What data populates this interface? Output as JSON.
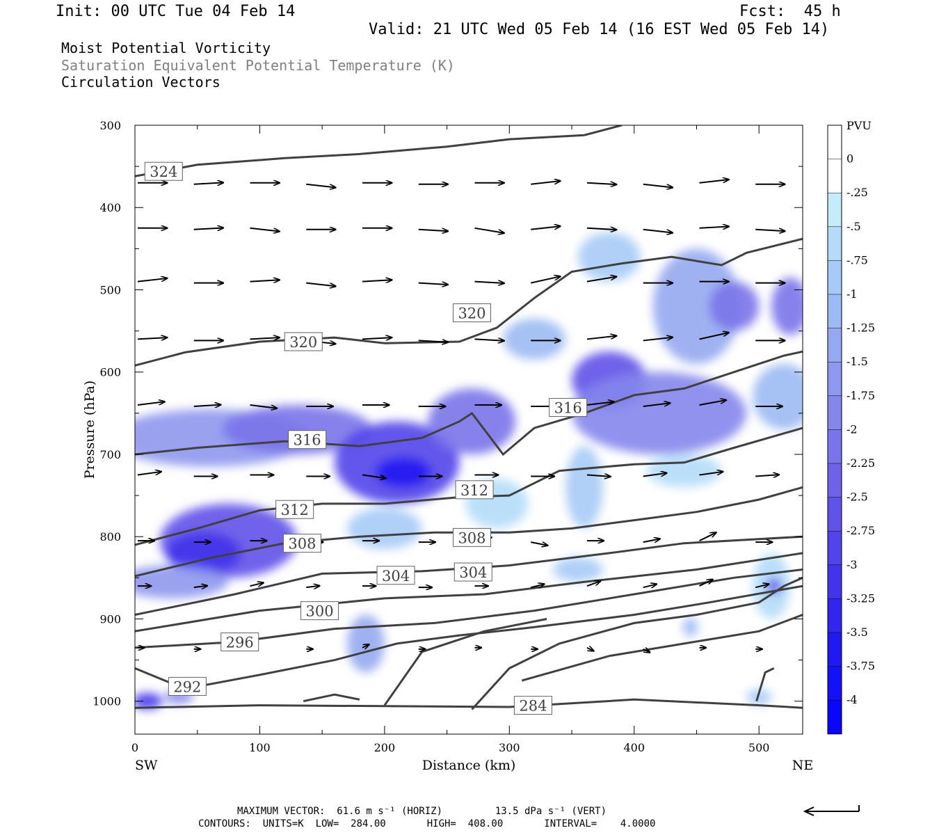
{
  "header": {
    "init": "Init: 00 UTC Tue 04 Feb 14",
    "fcst": "Fcst:  45 h",
    "valid": "Valid: 21 UTC Wed 05 Feb 14 (16 EST Wed 05 Feb 14)",
    "field1": "Moist Potential Vorticity",
    "field2": "Saturation Equivalent Potential Temperature (K)",
    "field3": "Circulation Vectors"
  },
  "footer": {
    "max_vector": "MAXIMUM VECTOR:  61.6 m s⁻¹ (HORIZ)         13.5 dPa s⁻¹ (VERT)",
    "contours": "CONTOURS:  UNITS=K  LOW=  284.00       HIGH=  408.00       INTERVAL=    4.0000"
  },
  "colors": {
    "contour": "#404040",
    "vector": "#000000",
    "colorbar": [
      "#ffffff",
      "#ffffff",
      "#c6ecfb",
      "#b4dcf8",
      "#a7cbf6",
      "#9cbaf3",
      "#95a8f0",
      "#8f98ee",
      "#8586ec",
      "#7a74ea",
      "#6f62e9",
      "#6152e9",
      "#5244ea",
      "#4234eb",
      "#3226ee",
      "#2218f2",
      "#1510f6",
      "#0a05fb"
    ]
  },
  "chart_data": {
    "type": "heatmap",
    "title": "Moist Potential Vorticity",
    "xlabel": "Distance (km)",
    "ylabel": "Pressure (hPa)",
    "x_ticks": [
      "0",
      "100",
      "200",
      "300",
      "400",
      "500"
    ],
    "y_ticks": [
      "300",
      "400",
      "500",
      "600",
      "700",
      "800",
      "900",
      "1000"
    ],
    "xlim": [
      0,
      535
    ],
    "ylim": [
      1040,
      300
    ],
    "x_end_labels": {
      "left": "SW",
      "right": "NE"
    },
    "colorbar": {
      "units": "PVU",
      "labels": [
        "0",
        "-.25",
        "-.5",
        "-.75",
        "-1",
        "-1.25",
        "-1.5",
        "-1.75",
        "-2",
        "-2.25",
        "-2.5",
        "-2.75",
        "-3",
        "-3.25",
        "-3.5",
        "-3.75",
        "-4"
      ],
      "levels": [
        0.25,
        0,
        -0.25,
        -0.5,
        -0.75,
        -1,
        -1.25,
        -1.5,
        -1.75,
        -2,
        -2.25,
        -2.5,
        -2.75,
        -3,
        -3.25,
        -3.5,
        -3.75,
        -4,
        -4.25
      ]
    },
    "mpv_blobs": [
      {
        "x": 60,
        "p": 680,
        "rx": 80,
        "rp": 35,
        "v": -1.5
      },
      {
        "x": 130,
        "p": 670,
        "rx": 60,
        "rp": 30,
        "v": -2.0
      },
      {
        "x": 210,
        "p": 710,
        "rx": 50,
        "rp": 50,
        "v": -2.75
      },
      {
        "x": 215,
        "p": 722,
        "rx": 22,
        "rp": 18,
        "v": -3.5
      },
      {
        "x": 270,
        "p": 660,
        "rx": 35,
        "rp": 40,
        "v": -2.0
      },
      {
        "x": 75,
        "p": 805,
        "rx": 55,
        "rp": 45,
        "v": -2.5
      },
      {
        "x": 55,
        "p": 820,
        "rx": 30,
        "rp": 25,
        "v": -3.0
      },
      {
        "x": 30,
        "p": 855,
        "rx": 45,
        "rp": 20,
        "v": -1.5
      },
      {
        "x": 380,
        "p": 610,
        "rx": 30,
        "rp": 35,
        "v": -2.5
      },
      {
        "x": 420,
        "p": 650,
        "rx": 70,
        "rp": 50,
        "v": -1.75
      },
      {
        "x": 450,
        "p": 520,
        "rx": 35,
        "rp": 70,
        "v": -1.25
      },
      {
        "x": 480,
        "p": 520,
        "rx": 20,
        "rp": 30,
        "v": -2.0
      },
      {
        "x": 525,
        "p": 520,
        "rx": 15,
        "rp": 35,
        "v": -2.0
      },
      {
        "x": 520,
        "p": 630,
        "rx": 25,
        "rp": 40,
        "v": -1.0
      },
      {
        "x": 380,
        "p": 460,
        "rx": 25,
        "rp": 30,
        "v": -0.75
      },
      {
        "x": 320,
        "p": 560,
        "rx": 25,
        "rp": 25,
        "v": -1.0
      },
      {
        "x": 360,
        "p": 740,
        "rx": 15,
        "rp": 50,
        "v": -0.75
      },
      {
        "x": 440,
        "p": 720,
        "rx": 30,
        "rp": 20,
        "v": -0.5
      },
      {
        "x": 200,
        "p": 790,
        "rx": 30,
        "rp": 25,
        "v": -0.75
      },
      {
        "x": 185,
        "p": 930,
        "rx": 15,
        "rp": 35,
        "v": -1.25
      },
      {
        "x": 10,
        "p": 1000,
        "rx": 12,
        "rp": 10,
        "v": -3.0
      },
      {
        "x": 35,
        "p": 995,
        "rx": 12,
        "rp": 8,
        "v": -1.75
      },
      {
        "x": 355,
        "p": 840,
        "rx": 20,
        "rp": 15,
        "v": -0.75
      },
      {
        "x": 510,
        "p": 860,
        "rx": 15,
        "rp": 40,
        "v": -0.5
      },
      {
        "x": 512,
        "p": 860,
        "rx": 6,
        "rp": 10,
        "v": -2.5
      },
      {
        "x": 445,
        "p": 910,
        "rx": 6,
        "rp": 12,
        "v": -1.0
      },
      {
        "x": 500,
        "p": 995,
        "rx": 10,
        "rp": 10,
        "v": -0.75
      },
      {
        "x": 290,
        "p": 760,
        "rx": 25,
        "rp": 30,
        "v": -0.5
      }
    ],
    "theta_e_contours": [
      {
        "label": "324",
        "label_at": [
          23,
          356
        ],
        "points": [
          [
            0,
            362
          ],
          [
            50,
            348
          ],
          [
            120,
            340
          ],
          [
            180,
            335
          ],
          [
            250,
            326
          ],
          [
            300,
            317
          ],
          [
            360,
            312
          ],
          [
            390,
            300
          ]
        ]
      },
      {
        "label": "320",
        "label_at": [
          135,
          563
        ],
        "points": [
          [
            0,
            592
          ],
          [
            40,
            576
          ],
          [
            100,
            563
          ],
          [
            160,
            558
          ],
          [
            200,
            565
          ],
          [
            260,
            563
          ],
          [
            290,
            546
          ],
          [
            320,
            510
          ],
          [
            350,
            478
          ],
          [
            390,
            468
          ],
          [
            430,
            460
          ],
          [
            470,
            470
          ],
          [
            490,
            455
          ],
          [
            535,
            438
          ]
        ]
      },
      {
        "label": "320",
        "label_at": [
          270,
          528
        ],
        "points": []
      },
      {
        "label": "316",
        "label_at": [
          138,
          682
        ],
        "points": [
          [
            0,
            700
          ],
          [
            50,
            692
          ],
          [
            120,
            684
          ],
          [
            180,
            690
          ],
          [
            230,
            680
          ],
          [
            260,
            660
          ],
          [
            270,
            650
          ],
          [
            285,
            680
          ],
          [
            295,
            700
          ],
          [
            320,
            668
          ],
          [
            360,
            650
          ],
          [
            400,
            628
          ],
          [
            440,
            620
          ],
          [
            480,
            600
          ],
          [
            520,
            580
          ],
          [
            535,
            575
          ]
        ]
      },
      {
        "label": "316",
        "label_at": [
          347,
          643
        ],
        "points": []
      },
      {
        "label": "312",
        "label_at": [
          128,
          767
        ],
        "points": [
          [
            0,
            810
          ],
          [
            50,
            790
          ],
          [
            100,
            768
          ],
          [
            150,
            760
          ],
          [
            200,
            760
          ],
          [
            260,
            752
          ],
          [
            300,
            750
          ],
          [
            340,
            720
          ],
          [
            400,
            712
          ],
          [
            440,
            710
          ],
          [
            480,
            692
          ],
          [
            535,
            668
          ]
        ]
      },
      {
        "label": "312",
        "label_at": [
          272,
          743
        ],
        "points": []
      },
      {
        "label": "308",
        "label_at": [
          134,
          808
        ],
        "points": [
          [
            0,
            848
          ],
          [
            60,
            826
          ],
          [
            120,
            808
          ],
          [
            180,
            800
          ],
          [
            240,
            795
          ],
          [
            300,
            795
          ],
          [
            350,
            790
          ],
          [
            400,
            780
          ],
          [
            450,
            770
          ],
          [
            500,
            755
          ],
          [
            535,
            740
          ]
        ]
      },
      {
        "label": "308",
        "label_at": [
          270,
          801
        ],
        "points": []
      },
      {
        "label": "304",
        "label_at": [
          209,
          847
        ],
        "points": [
          [
            0,
            895
          ],
          [
            80,
            870
          ],
          [
            150,
            845
          ],
          [
            230,
            842
          ],
          [
            300,
            835
          ],
          [
            380,
            820
          ],
          [
            440,
            808
          ],
          [
            535,
            800
          ]
        ]
      },
      {
        "label": "304",
        "label_at": [
          271,
          843
        ],
        "points": []
      },
      {
        "label": "300",
        "label_at": [
          148,
          890
        ],
        "points": [
          [
            0,
            915
          ],
          [
            100,
            890
          ],
          [
            200,
            875
          ],
          [
            280,
            870
          ],
          [
            360,
            855
          ],
          [
            450,
            840
          ],
          [
            535,
            820
          ]
        ]
      },
      {
        "label": "296",
        "label_at": [
          84,
          928
        ],
        "points": [
          [
            0,
            935
          ],
          [
            80,
            928
          ],
          [
            160,
            912
          ],
          [
            240,
            905
          ],
          [
            320,
            890
          ],
          [
            400,
            870
          ],
          [
            480,
            850
          ],
          [
            535,
            840
          ]
        ]
      },
      {
        "label": "292",
        "label_at": [
          42,
          982
        ],
        "points": [
          [
            0,
            960
          ],
          [
            40,
            985
          ],
          [
            100,
            968
          ],
          [
            160,
            950
          ],
          [
            210,
            930
          ],
          [
            260,
            920
          ],
          [
            320,
            910
          ],
          [
            400,
            895
          ],
          [
            460,
            880
          ],
          [
            535,
            860
          ]
        ]
      },
      {
        "label": "284",
        "label_at": [
          319,
          1005
        ],
        "points": [
          [
            0,
            1008
          ],
          [
            100,
            1005
          ],
          [
            200,
            1006
          ],
          [
            300,
            1007
          ],
          [
            400,
            998
          ],
          [
            500,
            1005
          ],
          [
            535,
            1008
          ]
        ]
      }
    ],
    "extra_contours": [
      [
        [
          270,
          1010
        ],
        [
          300,
          960
        ],
        [
          340,
          930
        ],
        [
          400,
          905
        ],
        [
          450,
          895
        ],
        [
          500,
          880
        ],
        [
          520,
          860
        ],
        [
          535,
          850
        ]
      ],
      [
        [
          200,
          1005
        ],
        [
          230,
          940
        ],
        [
          280,
          915
        ],
        [
          330,
          900
        ]
      ],
      [
        [
          310,
          975
        ],
        [
          380,
          945
        ],
        [
          440,
          930
        ],
        [
          500,
          915
        ],
        [
          535,
          895
        ]
      ],
      [
        [
          135,
          1000
        ],
        [
          160,
          992
        ],
        [
          180,
          998
        ]
      ],
      [
        [
          498,
          1000
        ],
        [
          505,
          965
        ],
        [
          512,
          960
        ]
      ]
    ],
    "vectors": [
      {
        "p": 370,
        "xs": [
          0,
          45,
          90,
          135,
          180,
          225,
          270,
          315,
          360,
          405,
          450,
          495
        ],
        "dx": 35,
        "dp": [
          0,
          -2,
          0,
          4,
          0,
          0,
          0,
          -4,
          2,
          4,
          -4,
          0
        ]
      },
      {
        "p": 425,
        "xs": [
          0,
          45,
          90,
          135,
          180,
          225,
          270,
          315,
          360,
          405,
          450,
          495
        ],
        "dx": 35,
        "dp": [
          0,
          -2,
          4,
          0,
          0,
          2,
          6,
          -4,
          2,
          4,
          -2,
          2
        ]
      },
      {
        "p": 490,
        "xs": [
          0,
          45,
          90,
          135,
          180,
          225,
          270,
          315,
          360,
          405,
          450,
          495
        ],
        "dx": 35,
        "dp": [
          -4,
          0,
          -2,
          4,
          -2,
          2,
          2,
          -8,
          -6,
          0,
          0,
          0
        ]
      },
      {
        "p": 560,
        "xs": [
          0,
          45,
          90,
          135,
          180,
          225,
          270,
          315,
          360,
          405,
          450,
          495
        ],
        "dx": 35,
        "dp": [
          -2,
          0,
          -2,
          4,
          -2,
          2,
          2,
          0,
          -4,
          -4,
          -8,
          0
        ]
      },
      {
        "p": 640,
        "xs": [
          0,
          45,
          90,
          135,
          180,
          225,
          270,
          315,
          360,
          405,
          450,
          495
        ],
        "dx": 32,
        "dp": [
          -4,
          -2,
          4,
          0,
          0,
          0,
          0,
          0,
          -4,
          -4,
          -6,
          0
        ]
      },
      {
        "p": 725,
        "xs": [
          0,
          45,
          90,
          135,
          180,
          225,
          270,
          315,
          360,
          405,
          450,
          495
        ],
        "dx": 28,
        "dp": [
          -4,
          0,
          0,
          0,
          4,
          0,
          0,
          0,
          2,
          -4,
          -4,
          -2
        ]
      },
      {
        "p": 805,
        "xs": [
          0,
          45,
          90,
          135,
          180,
          225,
          270,
          315,
          360,
          405,
          450,
          495
        ],
        "dx": 20,
        "dp": [
          0,
          0,
          0,
          0,
          0,
          0,
          -4,
          4,
          0,
          -4,
          -10,
          0
        ]
      },
      {
        "p": 860,
        "xs": [
          0,
          45,
          90,
          135,
          180,
          225,
          270,
          315,
          360,
          405,
          450,
          495
        ],
        "dx": 16,
        "dp": [
          0,
          -2,
          -4,
          -2,
          0,
          0,
          0,
          -4,
          -6,
          -4,
          -8,
          -4
        ]
      },
      {
        "p": 935,
        "xs": [
          0,
          45,
          90,
          135,
          180,
          225,
          270,
          315,
          360,
          405,
          450,
          495
        ],
        "dx": 8,
        "dp": [
          0,
          0,
          0,
          0,
          -4,
          0,
          0,
          0,
          4,
          4,
          0,
          0
        ]
      }
    ]
  }
}
